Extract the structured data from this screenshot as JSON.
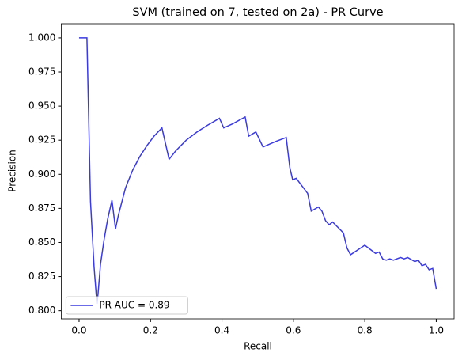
{
  "chart_data": {
    "type": "line",
    "title": "SVM (trained on 7, tested on 2a) -  PR Curve",
    "x_label": "Recall",
    "y_label": "Precision",
    "x": [
      0,
      0.022,
      0.032,
      0.042,
      0.05,
      0.053,
      0.06,
      0.07,
      0.08,
      0.092,
      0.102,
      0.11,
      0.13,
      0.15,
      0.17,
      0.19,
      0.21,
      0.232,
      0.252,
      0.27,
      0.3,
      0.33,
      0.36,
      0.393,
      0.405,
      0.43,
      0.465,
      0.475,
      0.495,
      0.515,
      0.55,
      0.58,
      0.59,
      0.598,
      0.608,
      0.64,
      0.65,
      0.67,
      0.68,
      0.69,
      0.7,
      0.71,
      0.74,
      0.75,
      0.76,
      0.8,
      0.83,
      0.84,
      0.85,
      0.86,
      0.87,
      0.88,
      0.9,
      0.91,
      0.92,
      0.94,
      0.95,
      0.96,
      0.97,
      0.98,
      0.99,
      1.0
    ],
    "series": [
      {
        "name": "PR AUC = 0.89",
        "color": "#3a3ae0",
        "values": [
          1.0,
          1.0,
          0.88,
          0.832,
          0.805,
          0.812,
          0.834,
          0.852,
          0.867,
          0.881,
          0.86,
          0.87,
          0.89,
          0.903,
          0.913,
          0.921,
          0.928,
          0.934,
          0.911,
          0.917,
          0.925,
          0.931,
          0.936,
          0.941,
          0.934,
          0.937,
          0.942,
          0.928,
          0.931,
          0.92,
          0.924,
          0.927,
          0.905,
          0.896,
          0.897,
          0.886,
          0.873,
          0.876,
          0.873,
          0.866,
          0.863,
          0.865,
          0.857,
          0.846,
          0.841,
          0.848,
          0.842,
          0.843,
          0.838,
          0.837,
          0.838,
          0.837,
          0.839,
          0.838,
          0.839,
          0.836,
          0.837,
          0.833,
          0.834,
          0.83,
          0.831,
          0.816
        ]
      }
    ],
    "xlim": [
      -0.05,
      1.05
    ],
    "xticks": [
      {
        "value": 0,
        "label": "0.0"
      },
      0.2,
      0.4,
      0.6,
      0.8,
      {
        "value": 1,
        "label": "1.0"
      }
    ],
    "ylim": [
      0.794,
      1.0104
    ],
    "yticks": [
      {
        "value": 0.8,
        "label": "0.800"
      },
      {
        "value": 0.825,
        "label": "0.825"
      },
      {
        "value": 0.85,
        "label": "0.850"
      },
      {
        "value": 0.875,
        "label": "0.875"
      },
      {
        "value": 0.9,
        "label": "0.900"
      },
      {
        "value": 0.925,
        "label": "0.925"
      },
      {
        "value": 0.95,
        "label": "0.950"
      },
      {
        "value": 0.975,
        "label": "0.975"
      },
      {
        "value": 1.0,
        "label": "1.000"
      }
    ],
    "legend": "lower left"
  }
}
